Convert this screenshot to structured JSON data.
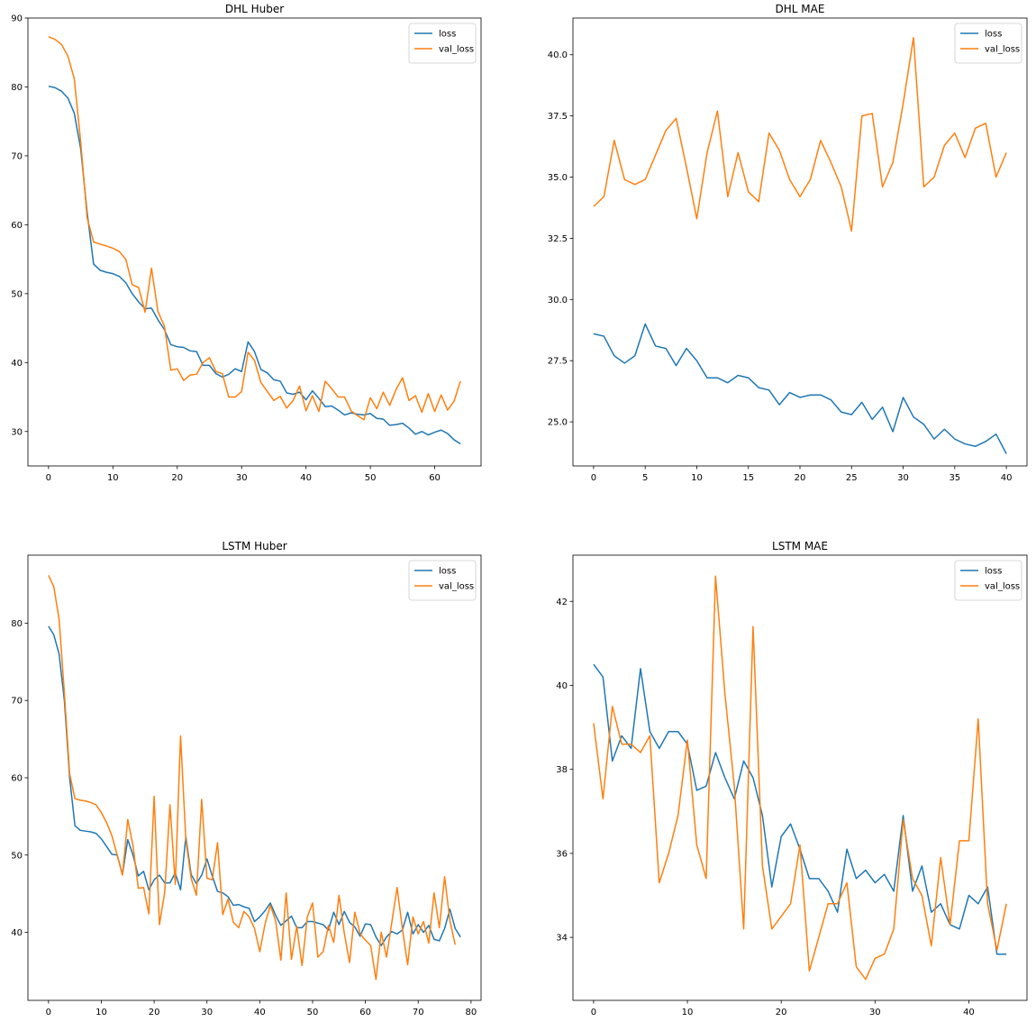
{
  "chart_data": [
    {
      "type": "line",
      "title": "DHL Huber",
      "xlabel": "",
      "ylabel": "",
      "xlim": [
        -3.2,
        67.2
      ],
      "ylim": [
        25.0,
        90.0
      ],
      "xticks": [
        0,
        10,
        20,
        30,
        40,
        50,
        60
      ],
      "yticks": [
        30,
        40,
        50,
        60,
        70,
        80,
        90
      ],
      "grid": false,
      "legend_position": "top-right",
      "series": [
        {
          "name": "loss",
          "color": "#1f77b4",
          "values": [
            80.1,
            79.9,
            79.4,
            78.4,
            76.2,
            71.0,
            61.8,
            54.3,
            53.4,
            53.1,
            52.9,
            52.5,
            51.6,
            50.0,
            48.8,
            47.8,
            47.9,
            46.2,
            44.8,
            42.6,
            42.3,
            42.2,
            41.7,
            41.6,
            39.6,
            39.6,
            38.4,
            37.9,
            38.3,
            39.1,
            38.7,
            43.0,
            41.6,
            39.0,
            38.5,
            37.5,
            37.3,
            35.6,
            35.4,
            35.7,
            34.6,
            35.9,
            34.8,
            33.6,
            33.7,
            33.1,
            32.4,
            32.7,
            32.5,
            32.4,
            32.6,
            31.9,
            31.8,
            30.9,
            31.0,
            31.2,
            30.5,
            29.6,
            30.0,
            29.5,
            29.9,
            30.2,
            29.7,
            28.8,
            28.2
          ]
        },
        {
          "name": "val_loss",
          "color": "#ff7f0e",
          "values": [
            87.3,
            86.9,
            86.2,
            84.5,
            81.2,
            72.0,
            61.0,
            57.5,
            57.2,
            56.9,
            56.6,
            56.1,
            55.0,
            51.3,
            50.9,
            47.3,
            53.7,
            47.4,
            45.3,
            38.9,
            39.1,
            37.4,
            38.2,
            38.3,
            40.0,
            40.7,
            38.7,
            38.4,
            35.0,
            35.0,
            35.8,
            41.5,
            40.3,
            37.1,
            35.8,
            34.5,
            35.1,
            33.4,
            34.5,
            36.6,
            33.0,
            35.2,
            32.9,
            37.3,
            36.2,
            35.0,
            35.0,
            33.0,
            32.3,
            31.7,
            34.9,
            33.3,
            35.7,
            33.8,
            36.1,
            37.8,
            34.5,
            35.2,
            32.8,
            35.5,
            32.9,
            35.3,
            33.1,
            34.4,
            37.3
          ]
        }
      ]
    },
    {
      "type": "line",
      "title": "DHL MAE",
      "xlabel": "",
      "ylabel": "",
      "xlim": [
        -2.0,
        42.0
      ],
      "ylim": [
        23.2,
        41.5
      ],
      "xticks": [
        0,
        5,
        10,
        15,
        20,
        25,
        30,
        35,
        40
      ],
      "yticks": [
        25.0,
        27.5,
        30.0,
        32.5,
        35.0,
        37.5,
        40.0
      ],
      "ytick_labels": [
        "25.0",
        "27.5",
        "30.0",
        "32.5",
        "35.0",
        "37.5",
        "40.0"
      ],
      "grid": false,
      "legend_position": "top-right",
      "series": [
        {
          "name": "loss",
          "color": "#1f77b4",
          "values": [
            28.6,
            28.5,
            27.7,
            27.4,
            27.7,
            29.0,
            28.1,
            28.0,
            27.3,
            28.0,
            27.5,
            26.8,
            26.8,
            26.6,
            26.9,
            26.8,
            26.4,
            26.3,
            25.7,
            26.2,
            26.0,
            26.1,
            26.1,
            25.9,
            25.4,
            25.3,
            25.8,
            25.1,
            25.6,
            24.6,
            26.0,
            25.2,
            24.9,
            24.3,
            24.7,
            24.3,
            24.1,
            24.0,
            24.2,
            24.5,
            23.7
          ]
        },
        {
          "name": "val_loss",
          "color": "#ff7f0e",
          "values": [
            33.8,
            34.2,
            36.5,
            34.9,
            34.7,
            34.9,
            35.9,
            36.9,
            37.4,
            35.4,
            33.3,
            36.0,
            37.7,
            34.2,
            36.0,
            34.4,
            34.0,
            36.8,
            36.1,
            34.9,
            34.2,
            34.9,
            36.5,
            35.6,
            34.6,
            32.8,
            37.5,
            37.6,
            34.6,
            35.6,
            38.0,
            40.7,
            34.6,
            35.0,
            36.3,
            36.8,
            35.8,
            37.0,
            37.2,
            35.0,
            36.0
          ]
        }
      ]
    },
    {
      "type": "line",
      "title": "LSTM Huber",
      "xlabel": "",
      "ylabel": "",
      "xlim": [
        -3.9,
        81.9
      ],
      "ylim": [
        31.2,
        88.8
      ],
      "xticks": [
        0,
        10,
        20,
        30,
        40,
        50,
        60,
        70,
        80
      ],
      "yticks": [
        40,
        50,
        60,
        70,
        80
      ],
      "grid": false,
      "legend_position": "top-right",
      "series": [
        {
          "name": "loss",
          "color": "#1f77b4",
          "values": [
            79.6,
            78.5,
            76.0,
            70.0,
            60.0,
            53.8,
            53.2,
            53.1,
            53.0,
            52.8,
            52.1,
            51.1,
            50.1,
            50.0,
            47.5,
            52.0,
            50.0,
            47.3,
            47.9,
            45.5,
            46.8,
            47.4,
            46.4,
            46.4,
            47.7,
            45.5,
            52.4,
            47.5,
            46.3,
            47.4,
            49.5,
            47.3,
            45.3,
            45.1,
            44.6,
            43.5,
            43.6,
            43.3,
            43.1,
            41.4,
            42.0,
            42.8,
            43.8,
            42.2,
            40.9,
            41.5,
            42.1,
            40.6,
            40.6,
            41.4,
            41.4,
            41.2,
            41.0,
            40.3,
            42.6,
            41.0,
            42.7,
            41.3,
            40.7,
            39.5,
            41.1,
            41.0,
            39.4,
            38.3,
            39.4,
            40.1,
            39.8,
            40.3,
            42.6,
            39.8,
            41.0,
            40.0,
            40.9,
            39.1,
            38.9,
            40.5,
            43.0,
            40.5,
            39.4
          ]
        },
        {
          "name": "val_loss",
          "color": "#ff7f0e",
          "values": [
            86.2,
            84.7,
            80.5,
            71.0,
            60.5,
            57.3,
            57.1,
            57.0,
            56.8,
            56.5,
            55.5,
            54.2,
            52.5,
            50.0,
            47.4,
            54.6,
            51.2,
            45.7,
            45.8,
            42.4,
            57.6,
            41.0,
            45.2,
            56.5,
            46.2,
            65.4,
            52.0,
            47.0,
            44.8,
            57.2,
            47.0,
            46.8,
            51.6,
            42.3,
            44.3,
            41.3,
            40.6,
            42.7,
            42.0,
            40.5,
            37.5,
            41.1,
            43.5,
            41.5,
            36.4,
            45.1,
            36.5,
            40.8,
            35.7,
            42.0,
            43.8,
            36.8,
            37.5,
            40.9,
            38.7,
            44.8,
            39.9,
            36.1,
            42.6,
            39.8,
            39.0,
            38.3,
            33.9,
            40.0,
            36.8,
            41.3,
            45.8,
            40.5,
            35.8,
            42.0,
            39.8,
            41.4,
            38.6,
            45.1,
            40.6,
            47.2,
            41.5,
            38.4
          ]
        }
      ]
    },
    {
      "type": "line",
      "title": "LSTM MAE",
      "xlabel": "",
      "ylabel": "",
      "xlim": [
        -2.2,
        46.2
      ],
      "ylim": [
        32.5,
        43.1
      ],
      "xticks": [
        0,
        10,
        20,
        30,
        40
      ],
      "yticks": [
        34,
        36,
        38,
        40,
        42
      ],
      "grid": false,
      "legend_position": "top-right",
      "series": [
        {
          "name": "loss",
          "color": "#1f77b4",
          "values": [
            40.5,
            40.2,
            38.2,
            38.8,
            38.5,
            40.4,
            38.9,
            38.5,
            38.9,
            38.9,
            38.6,
            37.5,
            37.6,
            38.4,
            37.8,
            37.3,
            38.2,
            37.8,
            36.9,
            35.2,
            36.4,
            36.7,
            36.1,
            35.4,
            35.4,
            35.1,
            34.6,
            36.1,
            35.4,
            35.6,
            35.3,
            35.5,
            35.1,
            36.9,
            35.1,
            35.7,
            34.6,
            34.8,
            34.3,
            34.2,
            35.0,
            34.8,
            35.2,
            33.6,
            33.6
          ]
        },
        {
          "name": "val_loss",
          "color": "#ff7f0e",
          "values": [
            39.1,
            37.3,
            39.5,
            38.6,
            38.6,
            38.4,
            38.8,
            35.3,
            36.0,
            36.9,
            38.7,
            36.2,
            35.4,
            42.6,
            39.8,
            37.6,
            34.2,
            41.4,
            35.7,
            34.2,
            34.5,
            34.8,
            36.2,
            33.2,
            34.0,
            34.8,
            34.8,
            35.3,
            33.3,
            33.0,
            33.5,
            33.6,
            34.2,
            36.8,
            35.4,
            35.0,
            33.8,
            35.9,
            34.3,
            36.3,
            36.3,
            39.2,
            34.8,
            33.7,
            34.8
          ]
        }
      ]
    }
  ]
}
